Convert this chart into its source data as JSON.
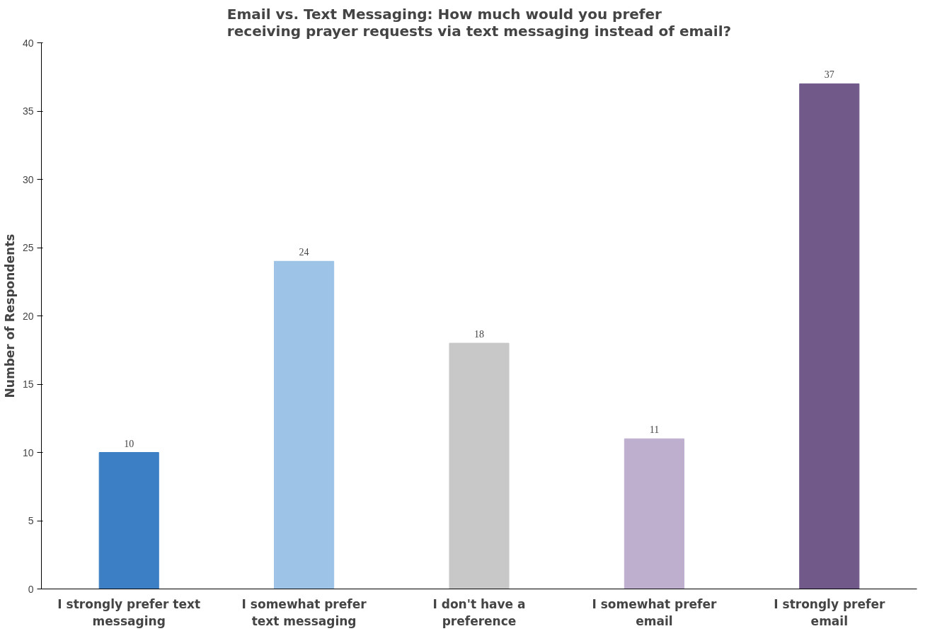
{
  "chart_data": {
    "type": "bar",
    "title": "Email vs. Text Messaging: How much would you prefer\nreceiving prayer requests via text messaging instead of email?",
    "ylabel": "Number of Respondents",
    "categories": [
      "I strongly prefer text\nmessaging",
      "I somewhat prefer\ntext messaging",
      "I don't have a\npreference",
      "I somewhat prefer\nemail",
      "I strongly prefer\nemail"
    ],
    "values": [
      10,
      24,
      18,
      11,
      37
    ],
    "colors": [
      "#3d7fc4",
      "#9dc3e6",
      "#c8c8c8",
      "#bfafcf",
      "#715a8a"
    ],
    "ylim": [
      0,
      40
    ],
    "yticks": [
      0,
      5,
      10,
      15,
      20,
      25,
      30,
      35,
      40
    ],
    "grid": false,
    "data_labels": true
  }
}
